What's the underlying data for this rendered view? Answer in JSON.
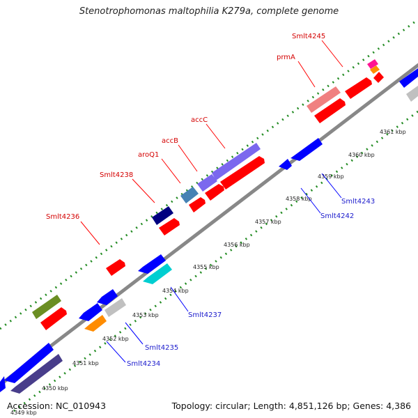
{
  "title": "Stenotrophomonas maltophilia K279a, complete genome",
  "footer": {
    "accession": "Accession: NC_010943",
    "summary": "Topology: circular; Length: 4,851,126 bp; Genes: 4,386"
  },
  "ticks": [
    "4349 kbp",
    "4350 kbp",
    "4351 kbp",
    "4352 kbp",
    "4353 kbp",
    "4354 kbp",
    "4355 kbp",
    "4356 kbp",
    "4357 kbp",
    "4358 kbp",
    "4359 kbp",
    "4360 kbp",
    "4361 kbp"
  ],
  "top_labels": [
    "Smlt4236",
    "Smlt4238",
    "aroQ1",
    "accB",
    "accC",
    "prmA",
    "Smlt4245"
  ],
  "bottom_labels": [
    "Smlt4234",
    "Smlt4235",
    "Smlt4237",
    "Smlt4242",
    "Smlt4243"
  ],
  "colors": {
    "red": "#ff0000",
    "blue": "#0000ff",
    "navy": "#000080",
    "purple": "#7b68ee",
    "steel": "#4682b4",
    "olive": "#6b8e23",
    "orange": "#ff8c00",
    "cyan": "#00ced1",
    "silver": "#c0c0c0",
    "darkslate": "#483d8b",
    "pink": "#f08080",
    "magenta": "#ff1493",
    "dots": "#228b22",
    "backbone": "#888888"
  }
}
